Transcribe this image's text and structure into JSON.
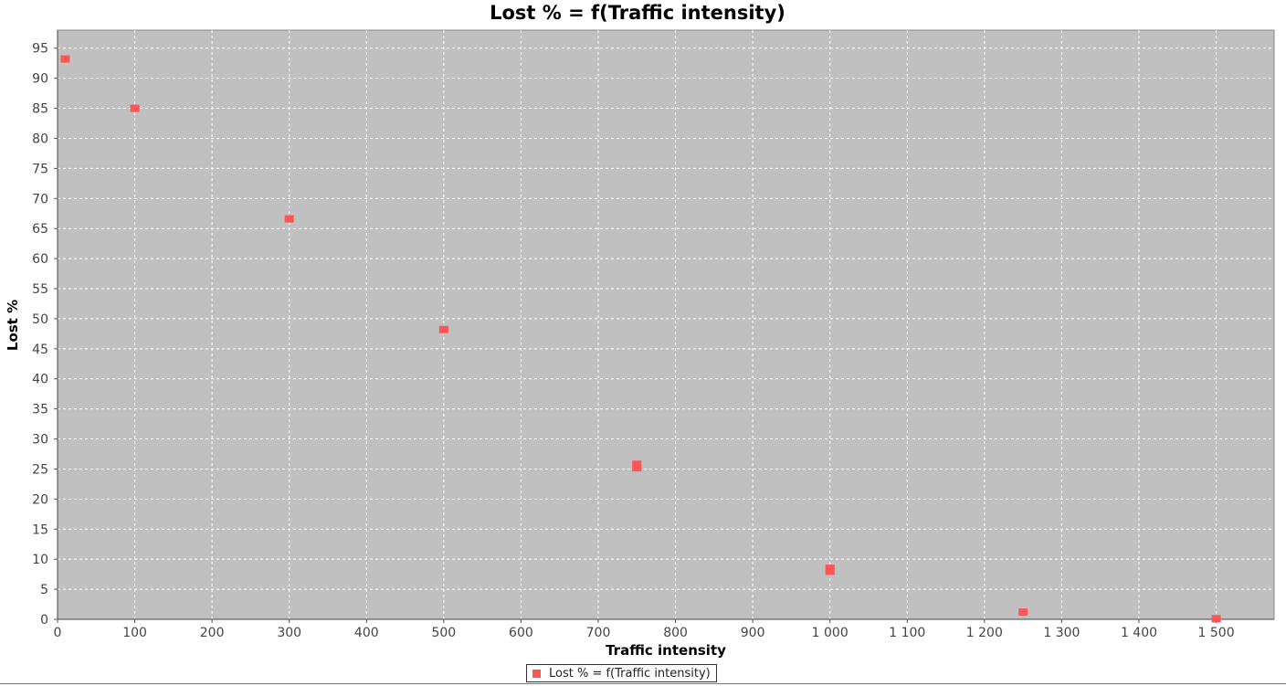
{
  "chart_data": {
    "type": "scatter",
    "title": "Lost % = f(Traffic intensity)",
    "xlabel": "Traffic intensity",
    "ylabel": "Lost %",
    "xlim": [
      0,
      1575
    ],
    "ylim": [
      0,
      98
    ],
    "x_ticks": [
      0,
      100,
      200,
      300,
      400,
      500,
      600,
      700,
      800,
      900,
      1000,
      1100,
      1200,
      1300,
      1400,
      1500
    ],
    "x_tick_labels": [
      "0",
      "100",
      "200",
      "300",
      "400",
      "500",
      "600",
      "700",
      "800",
      "900",
      "1 000",
      "1 100",
      "1 200",
      "1 300",
      "1 400",
      "1 500"
    ],
    "y_ticks": [
      0,
      5,
      10,
      15,
      20,
      25,
      30,
      35,
      40,
      45,
      50,
      55,
      60,
      65,
      70,
      75,
      80,
      85,
      90,
      95
    ],
    "grid": true,
    "legend_position": "bottom",
    "series": [
      {
        "name": "Lost % = f(Traffic intensity)",
        "color": "#ff5555",
        "points": [
          {
            "x": 10,
            "y": 93.2
          },
          {
            "x": 100,
            "y": 85.0
          },
          {
            "x": 300,
            "y": 66.6
          },
          {
            "x": 500,
            "y": 48.2
          },
          {
            "x": 750,
            "y": 25.8
          },
          {
            "x": 750,
            "y": 25.2
          },
          {
            "x": 1000,
            "y": 8.5
          },
          {
            "x": 1000,
            "y": 8.0
          },
          {
            "x": 1250,
            "y": 1.2
          },
          {
            "x": 1500,
            "y": 0.1
          }
        ]
      }
    ],
    "plot_background": "#c0c0c0"
  }
}
